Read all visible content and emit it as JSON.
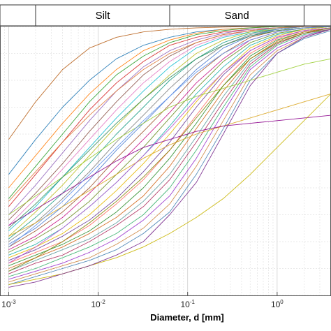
{
  "chart_data": {
    "type": "line",
    "title": "",
    "xlabel": "Diameter, d [mm]",
    "ylabel": "",
    "x_scale": "log",
    "xlim": [
      0.0008,
      4
    ],
    "ylim": [
      0,
      100
    ],
    "grid": true,
    "legend": "none",
    "size_classes": [
      {
        "label": "",
        "x_range": [
          0.0008,
          0.002
        ]
      },
      {
        "label": "Silt",
        "x_range": [
          0.002,
          0.063
        ]
      },
      {
        "label": "Sand",
        "x_range": [
          0.063,
          2
        ]
      },
      {
        "label": "",
        "x_range": [
          2,
          4
        ]
      }
    ],
    "x_ticks": [
      {
        "value": 0.001,
        "base": "10",
        "exp": "-3"
      },
      {
        "value": 0.01,
        "base": "10",
        "exp": "-2"
      },
      {
        "value": 0.1,
        "base": "10",
        "exp": "-1"
      },
      {
        "value": 1,
        "base": "10",
        "exp": "0"
      }
    ],
    "series_x": [
      0.001,
      0.002,
      0.004,
      0.008,
      0.016,
      0.032,
      0.063,
      0.125,
      0.25,
      0.5,
      1,
      2,
      4
    ],
    "series": [
      {
        "color": "#b8621b",
        "values": [
          58,
          72,
          84,
          92,
          96,
          98,
          99,
          99.5,
          99.8,
          100,
          100,
          100,
          100
        ]
      },
      {
        "color": "#1f77b4",
        "values": [
          45,
          58,
          70,
          80,
          88,
          93,
          96,
          98,
          99,
          99.5,
          100,
          100,
          100
        ]
      },
      {
        "color": "#ff7f0e",
        "values": [
          40,
          52,
          64,
          75,
          84,
          91,
          95,
          97.5,
          99,
          99.5,
          100,
          100,
          100
        ]
      },
      {
        "color": "#2ca02c",
        "values": [
          36,
          48,
          60,
          72,
          82,
          89,
          94,
          97,
          98.5,
          99.5,
          100,
          100,
          100
        ]
      },
      {
        "color": "#d62728",
        "values": [
          33,
          45,
          57,
          69,
          79,
          87,
          93,
          96,
          98,
          99,
          99.5,
          100,
          100
        ]
      },
      {
        "color": "#9467bd",
        "values": [
          30,
          41,
          53,
          65,
          76,
          85,
          91,
          95,
          97.5,
          99,
          99.5,
          100,
          100
        ]
      },
      {
        "color": "#8c564b",
        "values": [
          28,
          38,
          49,
          61,
          72,
          82,
          89,
          94,
          97,
          98.5,
          99.5,
          100,
          100
        ]
      },
      {
        "color": "#e377c2",
        "values": [
          26,
          36,
          47,
          58,
          69,
          79,
          87,
          93,
          96.5,
          98.5,
          99.5,
          100,
          100
        ]
      },
      {
        "color": "#17becf",
        "values": [
          24,
          33,
          44,
          55,
          66,
          76,
          85,
          92,
          96,
          98,
          99.5,
          100,
          100
        ]
      },
      {
        "color": "#bcbd22",
        "values": [
          22,
          31,
          41,
          52,
          63,
          73,
          82,
          90,
          95,
          98,
          99,
          100,
          100
        ]
      },
      {
        "color": "#1f9e89",
        "values": [
          21,
          29,
          38,
          49,
          60,
          70,
          80,
          88,
          94,
          97.5,
          99,
          100,
          100
        ]
      },
      {
        "color": "#7f7f7f",
        "values": [
          20,
          27,
          36,
          46,
          57,
          67,
          77,
          86,
          93,
          97,
          99,
          100,
          100
        ]
      },
      {
        "color": "#4a7bd0",
        "values": [
          19,
          25,
          33,
          43,
          54,
          64,
          74,
          84,
          92,
          96.5,
          99,
          100,
          100
        ]
      },
      {
        "color": "#a0522d",
        "values": [
          18,
          24,
          31,
          40,
          51,
          61,
          71,
          82,
          90,
          96,
          98.5,
          99.5,
          100
        ]
      },
      {
        "color": "#c71585",
        "values": [
          17,
          22,
          29,
          38,
          48,
          58,
          68,
          79,
          88,
          95,
          98,
          99.5,
          100
        ]
      },
      {
        "color": "#6b8e23",
        "values": [
          16,
          21,
          27,
          35,
          45,
          55,
          66,
          77,
          87,
          94,
          97.5,
          99,
          100
        ]
      },
      {
        "color": "#20b2aa",
        "values": [
          15,
          19,
          25,
          33,
          42,
          52,
          63,
          75,
          85,
          93,
          97,
          99,
          100
        ]
      },
      {
        "color": "#e6b800",
        "values": [
          14,
          18,
          23,
          30,
          39,
          49,
          60,
          72,
          83,
          92,
          96.5,
          99,
          100
        ]
      },
      {
        "color": "#6a3d9a",
        "values": [
          13,
          17,
          22,
          28,
          36,
          46,
          57,
          70,
          82,
          91,
          96,
          98.5,
          99.5
        ]
      },
      {
        "color": "#ff6f61",
        "values": [
          12,
          16,
          20,
          26,
          34,
          43,
          54,
          67,
          80,
          90,
          95.5,
          98.5,
          99.5
        ]
      },
      {
        "color": "#2f8f2f",
        "values": [
          11,
          15,
          19,
          24,
          31,
          40,
          51,
          64,
          78,
          89,
          95,
          98,
          99.5
        ]
      },
      {
        "color": "#d2691e",
        "values": [
          10,
          14,
          18,
          23,
          29,
          37,
          48,
          62,
          76,
          88,
          94.5,
          98,
          99.5
        ]
      },
      {
        "color": "#5f9ea0",
        "values": [
          9,
          13,
          17,
          21,
          27,
          35,
          45,
          59,
          74,
          87,
          94,
          97.5,
          99.5
        ]
      },
      {
        "color": "#b03060",
        "values": [
          8,
          12,
          15,
          20,
          26,
          33,
          43,
          57,
          72,
          86,
          93.5,
          97.5,
          99
        ]
      },
      {
        "color": "#3cb371",
        "values": [
          7,
          10,
          14,
          18,
          23,
          30,
          40,
          54,
          70,
          85,
          93,
          97,
          99
        ]
      },
      {
        "color": "#9932cc",
        "values": [
          6,
          9,
          12,
          16,
          21,
          28,
          37,
          51,
          68,
          84,
          92,
          96.5,
          99
        ]
      },
      {
        "color": "#cd853f",
        "values": [
          5,
          8,
          11,
          14,
          19,
          25,
          34,
          48,
          65,
          82,
          91,
          96,
          99
        ]
      },
      {
        "color": "#4682b4",
        "values": [
          4,
          7,
          10,
          13,
          17,
          23,
          31,
          45,
          62,
          80,
          90,
          95.5,
          98.5
        ]
      },
      {
        "color": "#daa520",
        "values": [
          22,
          27,
          33,
          39,
          45,
          51,
          56,
          60,
          63,
          66,
          69,
          72,
          75
        ]
      },
      {
        "color": "#8b008b",
        "values": [
          26,
          32,
          38,
          44,
          50,
          55,
          58,
          61,
          63,
          64,
          65,
          66,
          67
        ]
      },
      {
        "color": "#9acd32",
        "values": [
          30,
          37,
          44,
          51,
          58,
          64,
          70,
          74,
          77,
          80,
          83,
          86,
          88
        ]
      },
      {
        "color": "#c8b400",
        "values": [
          4,
          6,
          8,
          11,
          14,
          18,
          23,
          29,
          36,
          45,
          55,
          65,
          75
        ]
      },
      {
        "color": "#7b2d8e",
        "values": [
          3,
          5,
          8,
          11,
          15,
          20,
          30,
          42,
          60,
          78,
          90,
          96,
          99
        ]
      },
      {
        "color": "#e07b39",
        "values": [
          35,
          46,
          57,
          67,
          76,
          84,
          90,
          94,
          97,
          98.5,
          99.5,
          100,
          100
        ]
      },
      {
        "color": "#2e8b57",
        "values": [
          25,
          34,
          44,
          54,
          64,
          73,
          81,
          88,
          93,
          96.5,
          98.5,
          99.5,
          100
        ]
      },
      {
        "color": "#6495ed",
        "values": [
          18,
          26,
          35,
          45,
          55,
          65,
          74,
          83,
          90,
          95,
          98,
          99.5,
          100
        ]
      },
      {
        "color": "#ba55d3",
        "values": [
          12,
          18,
          25,
          33,
          42,
          52,
          62,
          73,
          83,
          91,
          96,
          98.5,
          99.5
        ]
      },
      {
        "color": "#808000",
        "values": [
          9,
          14,
          20,
          27,
          35,
          44,
          54,
          66,
          78,
          88,
          94,
          97.5,
          99.5
        ]
      }
    ]
  }
}
